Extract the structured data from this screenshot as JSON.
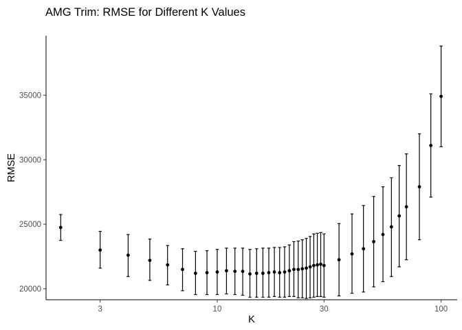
{
  "chart_data": {
    "type": "scatter",
    "title": "AMG Trim: RMSE for Different K Values",
    "xlabel": "K",
    "ylabel": "RMSE",
    "x_scale": "log10",
    "xlim": [
      1.72,
      118
    ],
    "ylim": [
      19150,
      39600
    ],
    "x_ticks": [
      3,
      10,
      30,
      100
    ],
    "y_ticks": [
      20000,
      25000,
      30000,
      35000
    ],
    "grid": false,
    "legend": "none",
    "points": [
      {
        "k": 2,
        "rmse": 24750,
        "ymin": 23750,
        "ymax": 25750
      },
      {
        "k": 3,
        "rmse": 23000,
        "ymin": 21600,
        "ymax": 24450
      },
      {
        "k": 4,
        "rmse": 22600,
        "ymin": 20950,
        "ymax": 24200
      },
      {
        "k": 5,
        "rmse": 22200,
        "ymin": 20650,
        "ymax": 23850
      },
      {
        "k": 6,
        "rmse": 21850,
        "ymin": 20300,
        "ymax": 23350
      },
      {
        "k": 7,
        "rmse": 21500,
        "ymin": 19850,
        "ymax": 23100
      },
      {
        "k": 8,
        "rmse": 21200,
        "ymin": 19550,
        "ymax": 22900
      },
      {
        "k": 9,
        "rmse": 21250,
        "ymin": 19550,
        "ymax": 22950
      },
      {
        "k": 10,
        "rmse": 21300,
        "ymin": 19550,
        "ymax": 23050
      },
      {
        "k": 11,
        "rmse": 21400,
        "ymin": 19600,
        "ymax": 23150
      },
      {
        "k": 12,
        "rmse": 21350,
        "ymin": 19550,
        "ymax": 23150
      },
      {
        "k": 13,
        "rmse": 21350,
        "ymin": 19500,
        "ymax": 23150
      },
      {
        "k": 14,
        "rmse": 21150,
        "ymin": 19350,
        "ymax": 23050
      },
      {
        "k": 15,
        "rmse": 21200,
        "ymin": 19350,
        "ymax": 23100
      },
      {
        "k": 16,
        "rmse": 21200,
        "ymin": 19350,
        "ymax": 23150
      },
      {
        "k": 17,
        "rmse": 21250,
        "ymin": 19350,
        "ymax": 23150
      },
      {
        "k": 18,
        "rmse": 21300,
        "ymin": 19400,
        "ymax": 23200
      },
      {
        "k": 19,
        "rmse": 21250,
        "ymin": 19350,
        "ymax": 23200
      },
      {
        "k": 20,
        "rmse": 21300,
        "ymin": 19350,
        "ymax": 23250
      },
      {
        "k": 21,
        "rmse": 21400,
        "ymin": 19400,
        "ymax": 23400
      },
      {
        "k": 22,
        "rmse": 21500,
        "ymin": 19400,
        "ymax": 23650
      },
      {
        "k": 23,
        "rmse": 21500,
        "ymin": 19300,
        "ymax": 23700
      },
      {
        "k": 24,
        "rmse": 21550,
        "ymin": 19300,
        "ymax": 23800
      },
      {
        "k": 25,
        "rmse": 21600,
        "ymin": 19250,
        "ymax": 23900
      },
      {
        "k": 26,
        "rmse": 21700,
        "ymin": 19300,
        "ymax": 24050
      },
      {
        "k": 27,
        "rmse": 21800,
        "ymin": 19350,
        "ymax": 24250
      },
      {
        "k": 28,
        "rmse": 21850,
        "ymin": 19400,
        "ymax": 24300
      },
      {
        "k": 29,
        "rmse": 21900,
        "ymin": 19400,
        "ymax": 24350
      },
      {
        "k": 30,
        "rmse": 21800,
        "ymin": 19350,
        "ymax": 24250
      },
      {
        "k": 35,
        "rmse": 22250,
        "ymin": 19450,
        "ymax": 25050
      },
      {
        "k": 40,
        "rmse": 22700,
        "ymin": 19650,
        "ymax": 25800
      },
      {
        "k": 45,
        "rmse": 23100,
        "ymin": 19750,
        "ymax": 26450
      },
      {
        "k": 50,
        "rmse": 23650,
        "ymin": 20150,
        "ymax": 27150
      },
      {
        "k": 55,
        "rmse": 24200,
        "ymin": 20550,
        "ymax": 27900
      },
      {
        "k": 60,
        "rmse": 24800,
        "ymin": 20950,
        "ymax": 28600
      },
      {
        "k": 65,
        "rmse": 25650,
        "ymin": 21700,
        "ymax": 29550
      },
      {
        "k": 70,
        "rmse": 26350,
        "ymin": 22250,
        "ymax": 30450
      },
      {
        "k": 80,
        "rmse": 27900,
        "ymin": 23800,
        "ymax": 32000
      },
      {
        "k": 90,
        "rmse": 31100,
        "ymin": 27100,
        "ymax": 35100
      },
      {
        "k": 100,
        "rmse": 34900,
        "ymin": 31000,
        "ymax": 38800
      }
    ]
  }
}
